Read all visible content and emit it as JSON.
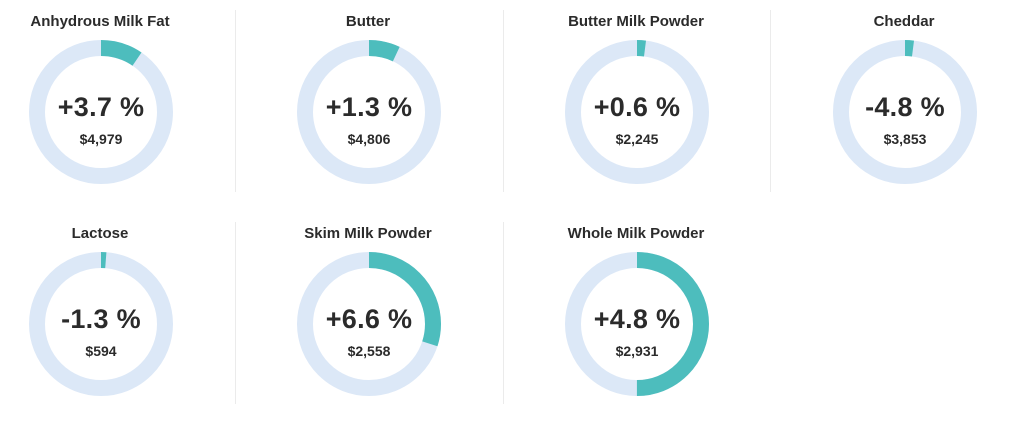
{
  "colors": {
    "track": "#dce8f7",
    "progress": "#4dbdbd",
    "text": "#2b2b2b"
  },
  "cards": [
    {
      "title": "Anhydrous Milk Fat",
      "change": "+3.7 %",
      "price": "$4,979",
      "fill": 0.095
    },
    {
      "title": "Butter",
      "change": "+1.3 %",
      "price": "$4,806",
      "fill": 0.07
    },
    {
      "title": "Butter Milk Powder",
      "change": "+0.6 %",
      "price": "$2,245",
      "fill": 0.02
    },
    {
      "title": "Cheddar",
      "change": "-4.8 %",
      "price": "$3,853",
      "fill": 0.02
    },
    {
      "title": "Lactose",
      "change": "-1.3 %",
      "price": "$594",
      "fill": 0.012
    },
    {
      "title": "Skim Milk Powder",
      "change": "+6.6 %",
      "price": "$2,558",
      "fill": 0.3
    },
    {
      "title": "Whole Milk Powder",
      "change": "+4.8 %",
      "price": "$2,931",
      "fill": 0.5
    }
  ]
}
